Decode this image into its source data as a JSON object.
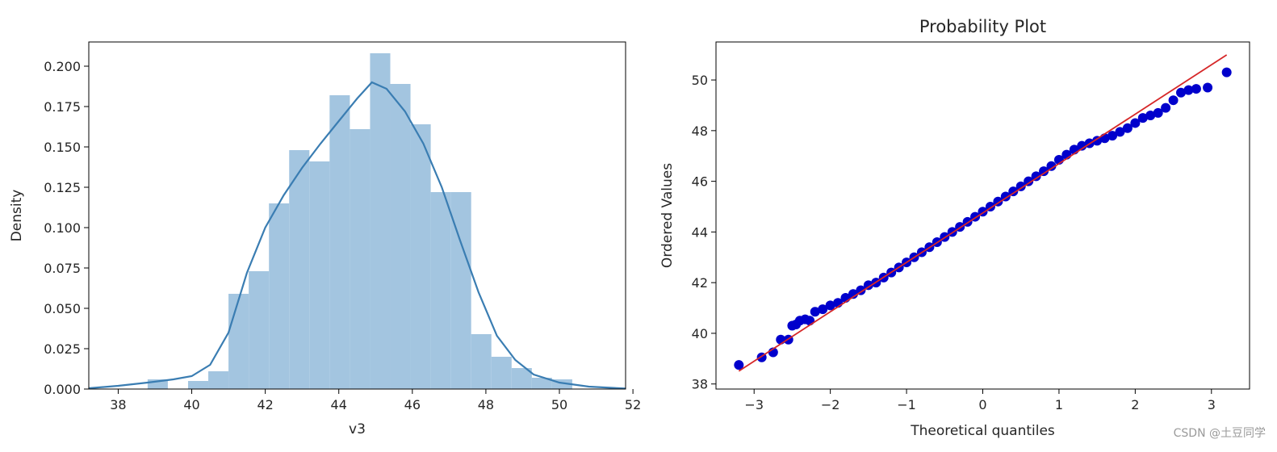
{
  "colors": {
    "hist_fill": "#a3c5e0",
    "kde_line": "#3a7db2",
    "points": "#0000cc",
    "fit_line": "#d62728",
    "axis": "#000000"
  },
  "watermark": "CSDN @土豆同学",
  "chart_data": [
    {
      "type": "bar",
      "subtype": "histogram-with-kde",
      "title": "",
      "xlabel": "v3",
      "ylabel": "Density",
      "xlim": [
        37.2,
        51.8
      ],
      "ylim": [
        0,
        0.215
      ],
      "xticks": [
        38,
        40,
        42,
        44,
        46,
        48,
        50,
        52
      ],
      "yticks": [
        0.0,
        0.025,
        0.05,
        0.075,
        0.1,
        0.125,
        0.15,
        0.175,
        0.2
      ],
      "ytick_labels": [
        "0.000",
        "0.025",
        "0.050",
        "0.075",
        "0.100",
        "0.125",
        "0.150",
        "0.175",
        "0.200"
      ],
      "bin_edges": [
        38.8,
        39.35,
        39.9,
        40.45,
        41.0,
        41.55,
        42.1,
        42.65,
        43.2,
        43.75,
        44.3,
        44.85,
        45.4,
        45.95,
        46.5,
        47.05,
        47.6,
        48.15,
        48.7,
        49.25,
        49.8,
        50.35
      ],
      "densities": [
        0.006,
        0.0,
        0.005,
        0.011,
        0.059,
        0.073,
        0.115,
        0.148,
        0.141,
        0.182,
        0.161,
        0.208,
        0.189,
        0.164,
        0.122,
        0.122,
        0.034,
        0.02,
        0.013,
        0.007,
        0.006
      ],
      "kde": {
        "x": [
          37.2,
          38.0,
          38.8,
          39.5,
          40.0,
          40.5,
          41.0,
          41.5,
          42.0,
          42.5,
          43.0,
          43.5,
          44.0,
          44.5,
          44.9,
          45.3,
          45.8,
          46.3,
          46.8,
          47.3,
          47.8,
          48.3,
          48.8,
          49.3,
          50.0,
          50.8,
          51.8
        ],
        "y": [
          0.0005,
          0.002,
          0.004,
          0.006,
          0.008,
          0.015,
          0.035,
          0.072,
          0.1,
          0.12,
          0.137,
          0.152,
          0.166,
          0.18,
          0.19,
          0.186,
          0.172,
          0.152,
          0.125,
          0.092,
          0.06,
          0.033,
          0.018,
          0.009,
          0.004,
          0.0015,
          0.0003
        ]
      }
    },
    {
      "type": "scatter",
      "subtype": "probability-plot",
      "title": "Probability Plot",
      "xlabel": "Theoretical quantiles",
      "ylabel": "Ordered Values",
      "xlim": [
        -3.5,
        3.5
      ],
      "ylim": [
        37.8,
        51.5
      ],
      "xticks": [
        -3,
        -2,
        -1,
        0,
        1,
        2,
        3
      ],
      "xtick_labels": [
        "−3",
        "−2",
        "−1",
        "0",
        "1",
        "2",
        "3"
      ],
      "yticks": [
        38,
        40,
        42,
        44,
        46,
        48,
        50
      ],
      "fit_line": {
        "slope": 1.95,
        "intercept": 44.75,
        "x_range": [
          -3.2,
          3.2
        ]
      },
      "points": {
        "x": [
          -3.2,
          -2.9,
          -2.75,
          -2.65,
          -2.55,
          -2.5,
          -2.45,
          -2.4,
          -2.33,
          -2.27,
          -2.2,
          -2.1,
          -2.0,
          -1.9,
          -1.8,
          -1.7,
          -1.6,
          -1.5,
          -1.4,
          -1.3,
          -1.2,
          -1.1,
          -1.0,
          -0.9,
          -0.8,
          -0.7,
          -0.6,
          -0.5,
          -0.4,
          -0.3,
          -0.2,
          -0.1,
          0.0,
          0.1,
          0.2,
          0.3,
          0.4,
          0.5,
          0.6,
          0.7,
          0.8,
          0.9,
          1.0,
          1.1,
          1.2,
          1.3,
          1.4,
          1.5,
          1.6,
          1.7,
          1.8,
          1.9,
          2.0,
          2.1,
          2.2,
          2.3,
          2.4,
          2.5,
          2.6,
          2.7,
          2.8,
          2.95,
          3.2
        ],
        "y": [
          38.75,
          39.05,
          39.25,
          39.75,
          39.75,
          40.3,
          40.35,
          40.5,
          40.55,
          40.5,
          40.85,
          40.95,
          41.1,
          41.2,
          41.4,
          41.55,
          41.7,
          41.9,
          42.0,
          42.2,
          42.4,
          42.6,
          42.8,
          43.0,
          43.2,
          43.4,
          43.6,
          43.8,
          44.0,
          44.2,
          44.4,
          44.6,
          44.8,
          45.0,
          45.2,
          45.4,
          45.6,
          45.8,
          46.0,
          46.2,
          46.4,
          46.6,
          46.85,
          47.05,
          47.25,
          47.4,
          47.5,
          47.6,
          47.7,
          47.8,
          47.95,
          48.1,
          48.3,
          48.5,
          48.6,
          48.7,
          48.9,
          49.2,
          49.5,
          49.6,
          49.65,
          49.7,
          50.3
        ]
      }
    }
  ]
}
